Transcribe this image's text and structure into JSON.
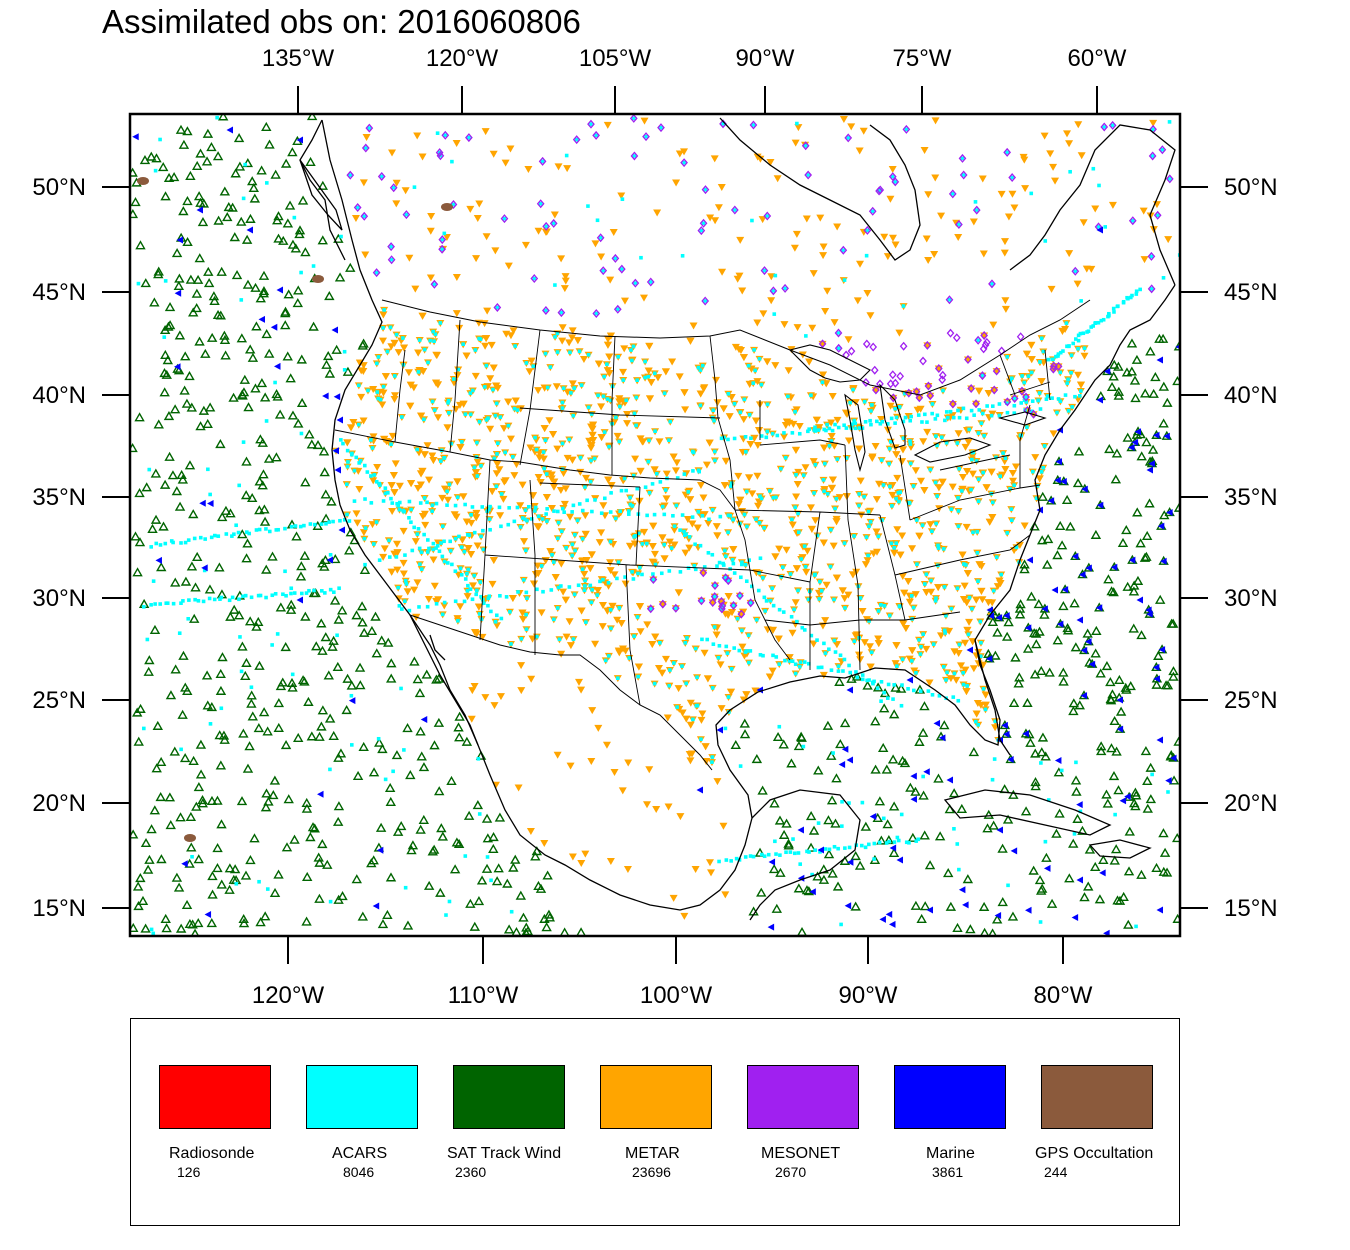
{
  "title": "Assimilated obs on: 2016060806",
  "map": {
    "top_lon_labels": [
      "135°W",
      "120°W",
      "105°W",
      "90°W",
      "75°W",
      "60°W"
    ],
    "bottom_lon_labels": [
      "120°W",
      "110°W",
      "100°W",
      "90°W",
      "80°W"
    ],
    "lat_labels": [
      "50°N",
      "45°N",
      "40°N",
      "35°N",
      "30°N",
      "25°N",
      "20°N",
      "15°N"
    ],
    "region_extent": {
      "lon_min": -128,
      "lon_max": -74,
      "lat_min": 13.5,
      "lat_max": 53.5
    }
  },
  "legend": [
    {
      "name": "Radiosonde",
      "count": "126",
      "color": "#ff0000"
    },
    {
      "name": "ACARS",
      "count": "8046",
      "color": "#00ffff"
    },
    {
      "name": "SAT Track Wind",
      "count": "2360",
      "color": "#006400"
    },
    {
      "name": "METAR",
      "count": "23696",
      "color": "#ffa500"
    },
    {
      "name": "MESONET",
      "count": "2670",
      "color": "#a020f0"
    },
    {
      "name": "Marine",
      "count": "3861",
      "color": "#0000ff"
    },
    {
      "name": "GPS Occultation",
      "count": "244",
      "color": "#8b5a3c"
    }
  ]
}
